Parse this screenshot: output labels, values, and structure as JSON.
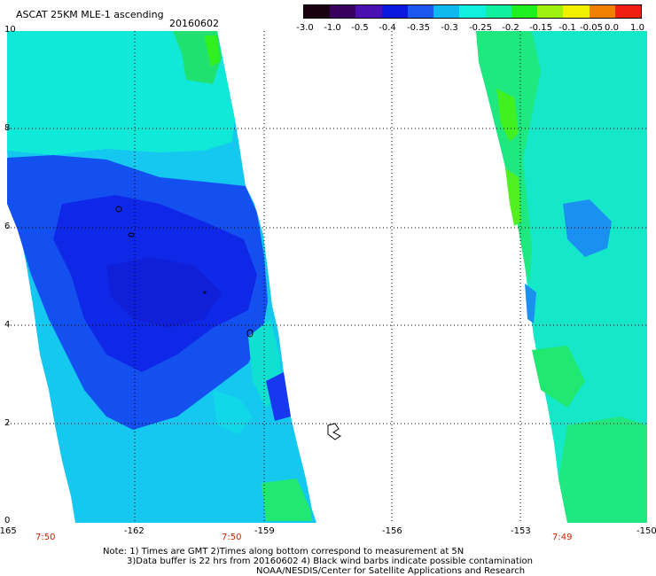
{
  "header": {
    "title": "ASCAT 25KM MLE-1 ascending",
    "date": "20160602"
  },
  "colorbar": {
    "labels": [
      "-3.0",
      "-1.0",
      "-0.5",
      "-0.4",
      "-0.35",
      "-0.3",
      "-0.25",
      "-0.2",
      "-0.15",
      "-0.1",
      "-0.05",
      "0.0",
      "1.0"
    ],
    "colors": [
      "#1a0010",
      "#3a0060",
      "#4a10b0",
      "#0a18e0",
      "#1a58f0",
      "#10b8f0",
      "#10f0e0",
      "#10f0a0",
      "#20f020",
      "#a0f010",
      "#f0f000",
      "#f08000",
      "#f02010"
    ]
  },
  "axes": {
    "y_labels": [
      "10",
      "8",
      "6",
      "4",
      "2",
      "0"
    ],
    "x_labels": [
      "-165",
      "-162",
      "-159",
      "-156",
      "-153",
      "-150"
    ],
    "time_labels": [
      "7:50",
      "7:50",
      "7:49"
    ]
  },
  "notes": {
    "line1": "Note: 1) Times are GMT 2)Times along bottom correspond to measurement at 5N",
    "line2": "3)Data buffer is 22 hrs from 20160602 4) Black wind barbs indicate possible contamination",
    "line3": "NOAA/NESDIS/Center for Satellite Applications and Research"
  }
}
